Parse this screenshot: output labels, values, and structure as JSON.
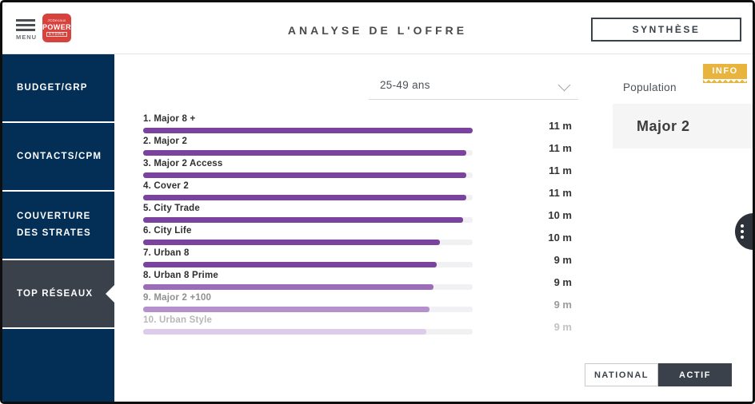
{
  "header": {
    "menu_label": "MENU",
    "logo": {
      "line1": "JCDecaux",
      "line2": "POWER",
      "line3": "STORE"
    },
    "title": "ANALYSE DE L'OFFRE",
    "synthese_button": "SYNTHÈSE"
  },
  "sidebar": {
    "items": [
      {
        "label": "BUDGET/GRP",
        "active": false
      },
      {
        "label": "CONTACTS/CPM",
        "active": false
      },
      {
        "label": "COUVERTURE DES STRATES",
        "active": false
      },
      {
        "label": "TOP RÉSEAUX",
        "active": true
      }
    ]
  },
  "filters": {
    "audience_dropdown_value": "25-49 ans"
  },
  "right_panel": {
    "info_badge_label": "INFO",
    "population_label": "Population",
    "selected_item": "Major 2"
  },
  "mode_toggle": {
    "options": [
      {
        "label": "NATIONAL",
        "active": false
      },
      {
        "label": "ACTIF",
        "active": true
      }
    ]
  },
  "colors": {
    "accent_purple": "#7b429e",
    "sidebar_navy": "#032f56",
    "active_charcoal": "#3a414b",
    "info_yellow": "#e9b43e",
    "logo_red": "#d8423d"
  },
  "chart_data": {
    "type": "bar",
    "orientation": "horizontal",
    "title": "",
    "xlabel": "",
    "ylabel": "",
    "unit": "m",
    "categories": [
      "1. Major 8 +",
      "2. Major 2",
      "3. Major 2 Access",
      "4. Cover 2",
      "5. City Trade",
      "6. City Life",
      "7. Urban 8",
      "8. Urban 8 Prime",
      "9. Major 2 +100",
      "10. Urban Style"
    ],
    "values": [
      11,
      11,
      11,
      11,
      10,
      10,
      9,
      9,
      9,
      9
    ],
    "value_labels": [
      "11 m",
      "11 m",
      "11 m",
      "11 m",
      "10 m",
      "10 m",
      "9 m",
      "9 m",
      "9 m",
      "9 m"
    ],
    "bar_percents": [
      100,
      98,
      98,
      98,
      97,
      90,
      89,
      88,
      87,
      86
    ],
    "bar_colors": [
      "#7b429e",
      "#7b429e",
      "#7b429e",
      "#7b429e",
      "#7b429e",
      "#7b429e",
      "#7b429e",
      "#9b6cba",
      "#b491cd",
      "#dccbe9"
    ],
    "label_colors": [
      "#2f2f2f",
      "#2f2f2f",
      "#2f2f2f",
      "#2f2f2f",
      "#2f2f2f",
      "#2f2f2f",
      "#2f2f2f",
      "#2f2f2f",
      "#8f8f8f",
      "#b7b7b7"
    ],
    "value_colors": [
      "#333333",
      "#333333",
      "#333333",
      "#333333",
      "#333333",
      "#333333",
      "#333333",
      "#333333",
      "#9a9a9a",
      "#c2c2c2"
    ]
  }
}
